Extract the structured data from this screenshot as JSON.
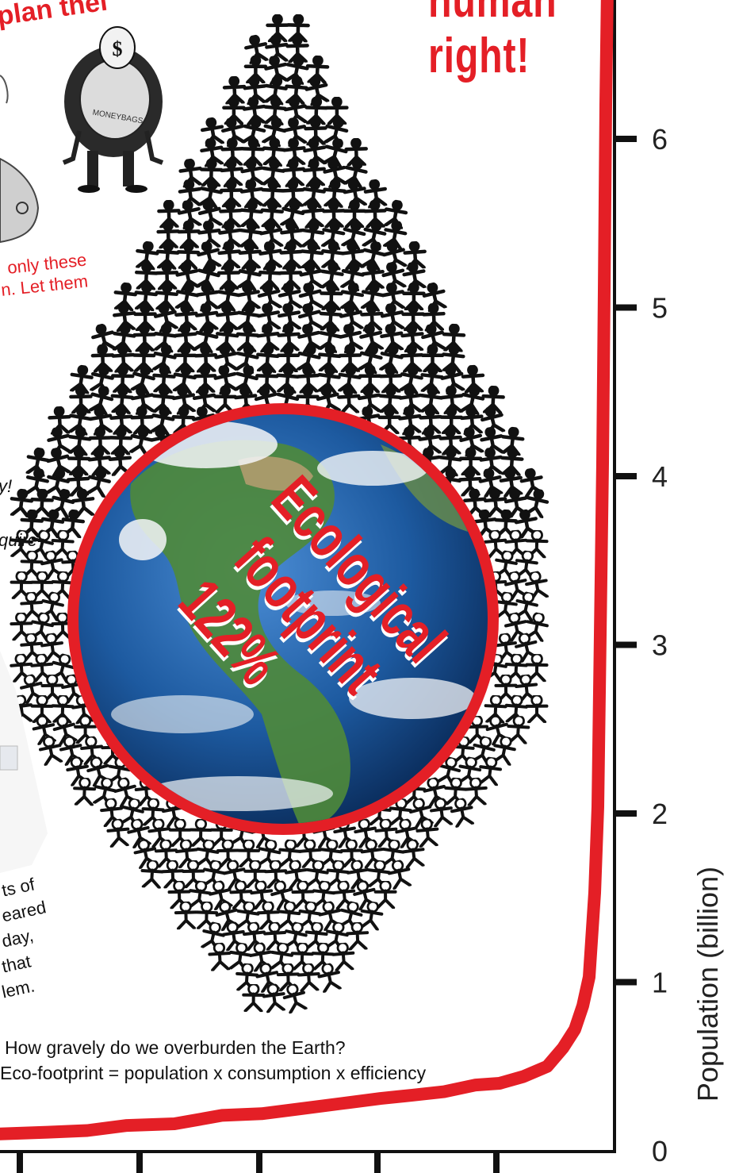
{
  "headline": {
    "line1": "human",
    "line2": "right!"
  },
  "top_left_fragment": "plan thei",
  "red_fragment": {
    "line1": "only these",
    "line2": "n. Let them"
  },
  "italic_fragments": {
    "line1": "y!",
    "line2": "quire-"
  },
  "left_fragment_lines": [
    "ts of",
    "eared",
    "day,",
    "that",
    "lem."
  ],
  "cartoon": {
    "symbol": "$",
    "bag_text": "MONEYBAGS"
  },
  "globe_text": {
    "line1": "Ecological",
    "line2": "footprint",
    "line3": "122%"
  },
  "caption": {
    "line1": "How gravely do we overburden the Earth?",
    "line2": "Eco-footprint = population x consumption x efficiency"
  },
  "chart_data": {
    "type": "line",
    "ylabel": "Population (billion)",
    "y_ticks": [
      0,
      1,
      2,
      3,
      4,
      5,
      6
    ],
    "ylim": [
      0,
      6.9
    ],
    "line_color": "#e41f26",
    "y": [
      0.1,
      0.11,
      0.12,
      0.15,
      0.16,
      0.21,
      0.22,
      0.25,
      0.28,
      0.31,
      0.33,
      0.35,
      0.39,
      0.4,
      0.44,
      0.5,
      0.61,
      0.72,
      0.86,
      1.03,
      1.53,
      2.04,
      3.06,
      4.08,
      5.1,
      6.2,
      6.9
    ]
  },
  "colors": {
    "accent": "#e41f26",
    "figure": "#111111",
    "ocean": "#1d5aa0",
    "land": "#4f8a3a"
  },
  "icons": {
    "people": "stick-figure-crowd",
    "globe": "earth-globe-icon",
    "cartoon": "fat-capitalist-cartoon"
  }
}
